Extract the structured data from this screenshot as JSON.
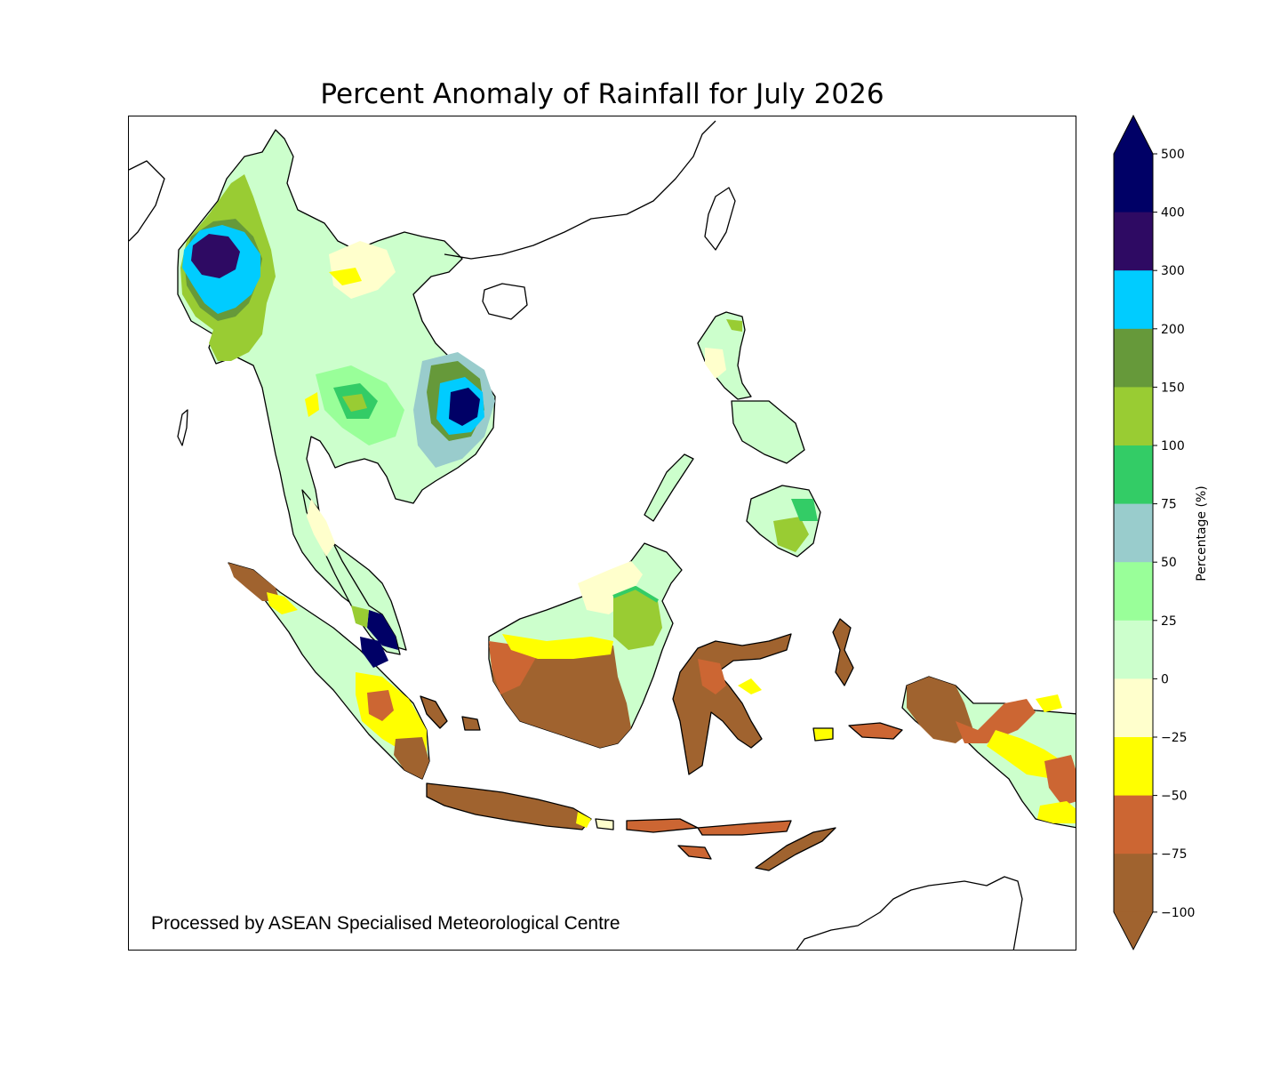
{
  "title": "Percent Anomaly of Rainfall for July 2026",
  "credit": "Processed by ASEAN Specialised Meteorological Centre",
  "colorbar": {
    "label": "Percentage (%)",
    "ticks": [
      "500",
      "400",
      "300",
      "200",
      "150",
      "100",
      "75",
      "50",
      "25",
      "0",
      "−25",
      "−50",
      "−75",
      "−100"
    ],
    "colors": [
      "#000066",
      "#2e0a63",
      "#00ccff",
      "#66993a",
      "#99cc33",
      "#33cc66",
      "#99cccc",
      "#99ff99",
      "#ccffcc",
      "#ffffcc",
      "#ffff00",
      "#cc6633",
      "#a0632f",
      "#a0632f"
    ]
  },
  "map": {
    "region": "Southeast Asia",
    "colors": {
      "coast": "#000000",
      "very_dry": "#a0632f",
      "dry": "#cc6633",
      "moderate_dry": "#ffff00",
      "slight_dry": "#ffffcc",
      "slight_wet": "#ccffcc",
      "wet": "#99ff99",
      "wet2": "#99cccc",
      "wet3": "#33cc66",
      "very_wet": "#99cc33",
      "very_wet2": "#66993a",
      "extreme": "#00ccff",
      "extreme2": "#2e0a63",
      "extreme3": "#000066"
    }
  }
}
